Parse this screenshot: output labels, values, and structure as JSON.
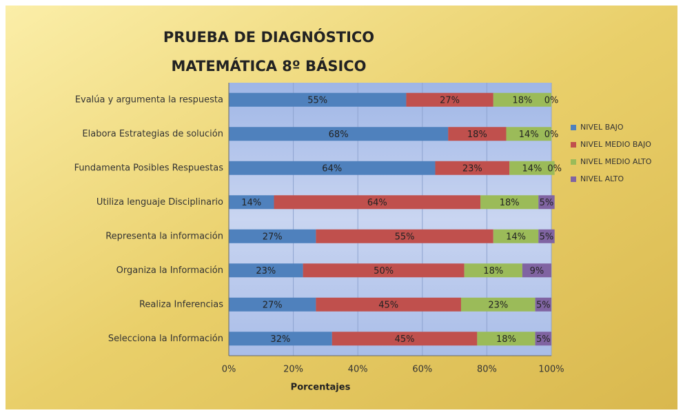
{
  "chart_data": {
    "type": "stacked-barh",
    "title": "PRUEBA DE DIAGNÓSTICO",
    "subtitle": "MATEMÁTICA  8º BÁSICO",
    "xlabel": "Porcentajes",
    "categories": [
      "Evalúa y argumenta la respuesta",
      "Elabora Estrategias de solución",
      "Fundamenta Posibles Respuestas",
      "Utiliza lenguaje Disciplinario",
      "Representa la información",
      "Organiza la Información",
      "Realiza Inferencias",
      "Selecciona la Información"
    ],
    "series": [
      {
        "name": "NIVEL BAJO",
        "color": "#4f81bd",
        "values": [
          55,
          68,
          64,
          14,
          27,
          23,
          27,
          32
        ],
        "value_labels": [
          "55%",
          "68%",
          "64%",
          "14%",
          "27%",
          "23%",
          "27%",
          "32%"
        ]
      },
      {
        "name": "NIVEL MEDIO BAJO",
        "color": "#c0504d",
        "values": [
          27,
          18,
          23,
          64,
          55,
          50,
          45,
          45
        ],
        "value_labels": [
          "27%",
          "18%",
          "23%",
          "64%",
          "55%",
          "50%",
          "45%",
          "45%"
        ]
      },
      {
        "name": "NIVEL MEDIO ALTO",
        "color": "#9bbb59",
        "values": [
          18,
          14,
          14,
          18,
          14,
          18,
          23,
          18
        ],
        "value_labels": [
          "18%",
          "14%",
          "14%",
          "18%",
          "14%",
          "18%",
          "23%",
          "18%"
        ]
      },
      {
        "name": "NIVEL ALTO",
        "color": "#8064a2",
        "values": [
          0,
          0,
          0,
          5,
          5,
          9,
          5,
          5
        ],
        "value_labels": [
          "0%",
          "0%",
          "0%",
          "5%",
          "5%",
          "9%",
          "5%",
          "5%"
        ]
      }
    ],
    "xlim": [
      0,
      100
    ],
    "xticks": [
      {
        "value": 0,
        "label": "0%"
      },
      {
        "value": 20,
        "label": "20%"
      },
      {
        "value": 40,
        "label": "40%"
      },
      {
        "value": 60,
        "label": "60%"
      },
      {
        "value": 80,
        "label": "80%"
      },
      {
        "value": 100,
        "label": "100%"
      }
    ],
    "grid": true,
    "legend": "right"
  }
}
